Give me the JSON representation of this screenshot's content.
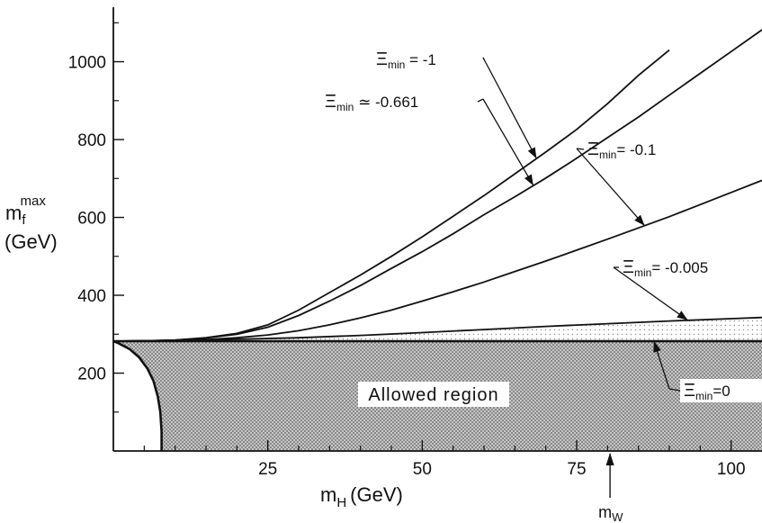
{
  "chart_data": {
    "type": "line",
    "xlabel_main": "m",
    "xlabel_sub": "H",
    "xlabel_unit": "(GeV)",
    "ylabel_main": "m",
    "ylabel_sub": "f",
    "ylabel_sup": "max",
    "ylabel_unit": "(GeV)",
    "xlim": [
      0,
      105
    ],
    "ylim": [
      0,
      1140
    ],
    "x_ticks": [
      {
        "value": 25,
        "label": "25"
      },
      {
        "value": 50,
        "label": "50"
      },
      {
        "value": 75,
        "label": "75"
      },
      {
        "value": 100,
        "label": "100"
      }
    ],
    "y_ticks": [
      {
        "value": 200,
        "label": "200"
      },
      {
        "value": 400,
        "label": "400"
      },
      {
        "value": 600,
        "label": "600"
      },
      {
        "value": 800,
        "label": "800"
      },
      {
        "value": 1000,
        "label": "1000"
      }
    ],
    "x_minor_ticks": [
      5,
      10,
      15,
      20,
      30,
      35,
      40,
      45,
      55,
      60,
      65,
      70,
      80,
      85,
      90,
      95
    ],
    "y_minor_ticks": [
      100,
      300,
      500,
      700,
      900,
      1100
    ],
    "series": [
      {
        "name": "Ξmin = -1",
        "x": [
          0,
          5,
          10,
          15,
          20,
          25,
          30,
          35,
          40,
          45,
          50,
          55,
          60,
          65,
          70,
          75,
          80,
          85,
          90
        ],
        "y": [
          282,
          283,
          285,
          291,
          302,
          324,
          362,
          407,
          452,
          500,
          550,
          603,
          656,
          712,
          768,
          826,
          892,
          965,
          1030
        ]
      },
      {
        "name": "Ξmin ≃ -0.661",
        "x": [
          0,
          5,
          10,
          15,
          20,
          25,
          30,
          35,
          40,
          45,
          50,
          55,
          60,
          65,
          70,
          75,
          80,
          85,
          90,
          95,
          100,
          105
        ],
        "y": [
          282,
          283,
          285,
          290,
          300,
          318,
          348,
          385,
          425,
          469,
          512,
          558,
          607,
          653,
          701,
          752,
          805,
          858,
          914,
          970,
          1026,
          1082
        ]
      },
      {
        "name": "Ξmin = -0.1",
        "x": [
          0,
          5,
          10,
          15,
          20,
          25,
          30,
          35,
          40,
          45,
          50,
          55,
          60,
          65,
          70,
          75,
          80,
          85,
          90,
          95,
          100,
          105
        ],
        "y": [
          282,
          283,
          284,
          286,
          291,
          298,
          309,
          324,
          342,
          362,
          385,
          409,
          434,
          461,
          488,
          516,
          544,
          573,
          602,
          633,
          664,
          695
        ]
      },
      {
        "name": "Ξmin = -0.005",
        "x": [
          0,
          10,
          20,
          30,
          40,
          50,
          60,
          70,
          80,
          90,
          100,
          105
        ],
        "y": [
          282,
          284,
          287,
          291,
          297,
          304,
          312,
          320,
          327,
          334,
          340,
          343
        ]
      },
      {
        "name": "Ξmin = 0",
        "x": [
          0,
          105
        ],
        "y": [
          282,
          282
        ]
      }
    ],
    "allowed_boundary": {
      "x": [
        7.8,
        7.8,
        7.6,
        7.2,
        6.5,
        5.5,
        4.2,
        2.6,
        0.8,
        0
      ],
      "y": [
        0,
        50,
        100,
        140,
        180,
        212,
        240,
        262,
        277,
        282
      ]
    },
    "annotations": [
      {
        "prefix": "Ξ",
        "sub": "min",
        "text": " = -1",
        "series": 0
      },
      {
        "prefix": "Ξ",
        "sub": "min",
        "text": " ≃ -0.661",
        "series": 1
      },
      {
        "prefix": "Ξ",
        "sub": "min",
        "text": "= -0.1",
        "series": 2
      },
      {
        "prefix": "Ξ",
        "sub": "min",
        "text": "= -0.005",
        "series": 3
      },
      {
        "prefix": "Ξ",
        "sub": "min",
        "text": "=0",
        "series": 4
      }
    ],
    "region_label": "Allowed region",
    "marker": {
      "label": "m",
      "sub": "W",
      "x": 80.4
    },
    "colors": {
      "curve": "#111111",
      "shade_dark": "#9a9a9a",
      "shade_light": "#e6e6e6"
    }
  }
}
